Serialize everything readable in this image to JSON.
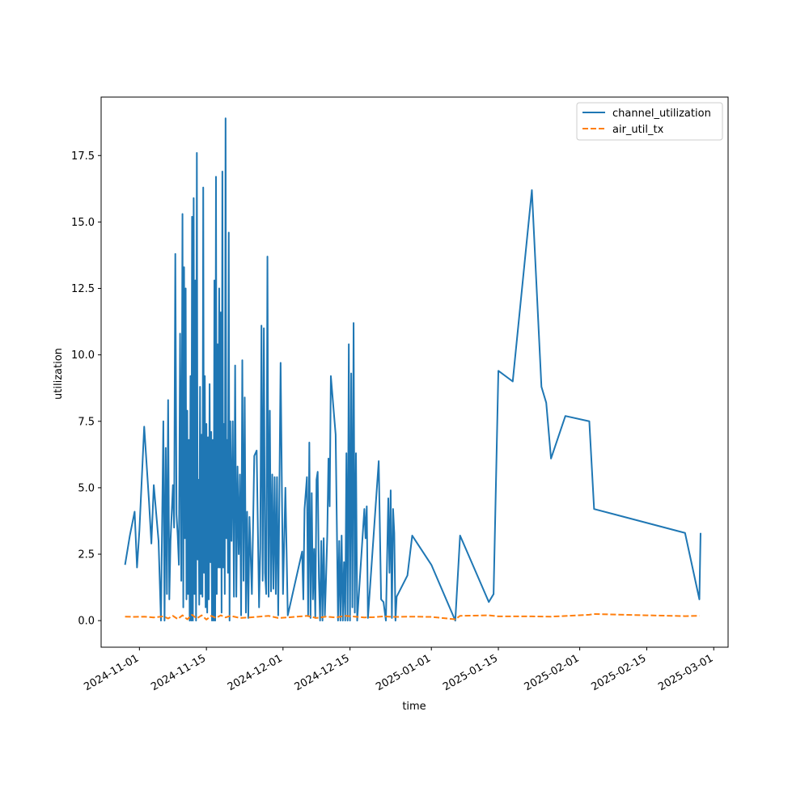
{
  "chart_data": {
    "type": "line",
    "xlabel": "time",
    "ylabel": "utilization",
    "x_axis_type": "date",
    "xlim": [
      "2024-10-24",
      "2025-03-04"
    ],
    "ylim": [
      -1.0,
      19.7
    ],
    "x_ticks": [
      "2024-11-01",
      "2024-11-15",
      "2024-12-01",
      "2024-12-15",
      "2025-01-01",
      "2025-01-15",
      "2025-02-01",
      "2025-02-15",
      "2025-03-01"
    ],
    "y_ticks": [
      "0.0",
      "2.5",
      "5.0",
      "7.5",
      "10.0",
      "12.5",
      "15.0",
      "17.5"
    ],
    "grid": false,
    "legend": "top-right",
    "series": [
      {
        "name": "channel_utilization",
        "color": "#1f77b4",
        "style": "solid",
        "points": [
          [
            "2024-10-29",
            2.1
          ],
          [
            "2024-10-30",
            3.2
          ],
          [
            "2024-10-31",
            4.1
          ],
          [
            "2024-10-31T12:00",
            2.0
          ],
          [
            "2024-11-01",
            3.4
          ],
          [
            "2024-11-02",
            7.3
          ],
          [
            "2024-11-03",
            4.5
          ],
          [
            "2024-11-03T12:00",
            2.9
          ],
          [
            "2024-11-04",
            5.1
          ],
          [
            "2024-11-05",
            3.0
          ],
          [
            "2024-11-05T12:00",
            0.0
          ],
          [
            "2024-11-06",
            7.5
          ],
          [
            "2024-11-06T06:00",
            0.0
          ],
          [
            "2024-11-06T12:00",
            6.5
          ],
          [
            "2024-11-06T18:00",
            1.0
          ],
          [
            "2024-11-07",
            8.3
          ],
          [
            "2024-11-07T06:00",
            0.8
          ],
          [
            "2024-11-07T12:00",
            3.0
          ],
          [
            "2024-11-08",
            5.1
          ],
          [
            "2024-11-08T06:00",
            3.5
          ],
          [
            "2024-11-08T12:00",
            13.8
          ],
          [
            "2024-11-08T18:00",
            4.0
          ],
          [
            "2024-11-09",
            3.2
          ],
          [
            "2024-11-09T06:00",
            2.1
          ],
          [
            "2024-11-09T12:00",
            10.8
          ],
          [
            "2024-11-09T18:00",
            1.5
          ],
          [
            "2024-11-10",
            15.3
          ],
          [
            "2024-11-10T04:00",
            0.5
          ],
          [
            "2024-11-10T08:00",
            13.3
          ],
          [
            "2024-11-10T12:00",
            3.1
          ],
          [
            "2024-11-10T16:00",
            12.5
          ],
          [
            "2024-11-10T20:00",
            0.8
          ],
          [
            "2024-11-11",
            7.9
          ],
          [
            "2024-11-11T04:00",
            1.0
          ],
          [
            "2024-11-11T08:00",
            6.8
          ],
          [
            "2024-11-11T12:00",
            0.0
          ],
          [
            "2024-11-11T16:00",
            9.2
          ],
          [
            "2024-11-11T20:00",
            0.0
          ],
          [
            "2024-11-12",
            15.2
          ],
          [
            "2024-11-12T04:00",
            0.0
          ],
          [
            "2024-11-12T08:00",
            15.9
          ],
          [
            "2024-11-12T12:00",
            1.0
          ],
          [
            "2024-11-12T16:00",
            12.8
          ],
          [
            "2024-11-12T20:00",
            0.0
          ],
          [
            "2024-11-13",
            17.6
          ],
          [
            "2024-11-13T04:00",
            2.3
          ],
          [
            "2024-11-13T08:00",
            5.3
          ],
          [
            "2024-11-13T12:00",
            0.6
          ],
          [
            "2024-11-13T16:00",
            8.8
          ],
          [
            "2024-11-13T20:00",
            1.0
          ],
          [
            "2024-11-14",
            7.0
          ],
          [
            "2024-11-14T04:00",
            0.9
          ],
          [
            "2024-11-14T08:00",
            16.3
          ],
          [
            "2024-11-14T12:00",
            1.8
          ],
          [
            "2024-11-14T16:00",
            9.2
          ],
          [
            "2024-11-14T20:00",
            0.5
          ],
          [
            "2024-11-15",
            7.4
          ],
          [
            "2024-11-15T04:00",
            0.3
          ],
          [
            "2024-11-15T08:00",
            6.9
          ],
          [
            "2024-11-15T12:00",
            0.8
          ],
          [
            "2024-11-15T16:00",
            8.9
          ],
          [
            "2024-11-15T20:00",
            2.2
          ],
          [
            "2024-11-16",
            7.1
          ],
          [
            "2024-11-16T04:00",
            0.0
          ],
          [
            "2024-11-16T08:00",
            6.8
          ],
          [
            "2024-11-16T12:00",
            0.0
          ],
          [
            "2024-11-16T16:00",
            12.8
          ],
          [
            "2024-11-16T20:00",
            0.0
          ],
          [
            "2024-11-17",
            16.7
          ],
          [
            "2024-11-17T04:00",
            1.0
          ],
          [
            "2024-11-17T08:00",
            10.4
          ],
          [
            "2024-11-17T12:00",
            2.0
          ],
          [
            "2024-11-17T16:00",
            12.5
          ],
          [
            "2024-11-17T20:00",
            2.0
          ],
          [
            "2024-11-18",
            11.6
          ],
          [
            "2024-11-18T04:00",
            0.3
          ],
          [
            "2024-11-18T08:00",
            16.9
          ],
          [
            "2024-11-18T12:00",
            2.0
          ],
          [
            "2024-11-18T16:00",
            7.4
          ],
          [
            "2024-11-18T20:00",
            1.0
          ],
          [
            "2024-11-19",
            18.9
          ],
          [
            "2024-11-19T04:00",
            3.1
          ],
          [
            "2024-11-19T08:00",
            6.8
          ],
          [
            "2024-11-19T12:00",
            1.8
          ],
          [
            "2024-11-19T16:00",
            14.6
          ],
          [
            "2024-11-19T20:00",
            0.0
          ],
          [
            "2024-11-20",
            7.5
          ],
          [
            "2024-11-20T06:00",
            3.0
          ],
          [
            "2024-11-20T12:00",
            7.5
          ],
          [
            "2024-11-20T18:00",
            0.9
          ],
          [
            "2024-11-21",
            9.6
          ],
          [
            "2024-11-21T06:00",
            0.9
          ],
          [
            "2024-11-21T12:00",
            5.8
          ],
          [
            "2024-11-21T18:00",
            2.5
          ],
          [
            "2024-11-22",
            5.5
          ],
          [
            "2024-11-22T06:00",
            0.2
          ],
          [
            "2024-11-22T12:00",
            9.8
          ],
          [
            "2024-11-22T18:00",
            1.5
          ],
          [
            "2024-11-23",
            8.4
          ],
          [
            "2024-11-23T06:00",
            0.3
          ],
          [
            "2024-11-23T12:00",
            4.1
          ],
          [
            "2024-11-23T18:00",
            0.1
          ],
          [
            "2024-11-24",
            3.9
          ],
          [
            "2024-11-24T12:00",
            1.0
          ],
          [
            "2024-11-25",
            6.2
          ],
          [
            "2024-11-25T12:00",
            6.4
          ],
          [
            "2024-11-26",
            0.5
          ],
          [
            "2024-11-26T06:00",
            2.7
          ],
          [
            "2024-11-26T12:00",
            11.1
          ],
          [
            "2024-11-26T18:00",
            1.5
          ],
          [
            "2024-11-27",
            11.0
          ],
          [
            "2024-11-27T06:00",
            1.8
          ],
          [
            "2024-11-27T12:00",
            1.0
          ],
          [
            "2024-11-27T18:00",
            13.7
          ],
          [
            "2024-11-28",
            0.9
          ],
          [
            "2024-11-28T06:00",
            7.9
          ],
          [
            "2024-11-28T12:00",
            1.1
          ],
          [
            "2024-11-28T18:00",
            5.5
          ],
          [
            "2024-11-29",
            1.2
          ],
          [
            "2024-11-29T06:00",
            5.4
          ],
          [
            "2024-11-29T12:00",
            1.0
          ],
          [
            "2024-11-29T18:00",
            5.4
          ],
          [
            "2024-11-30",
            0.2
          ],
          [
            "2024-11-30T12:00",
            9.7
          ],
          [
            "2024-12-01",
            1.0
          ],
          [
            "2024-12-01T12:00",
            5.0
          ],
          [
            "2024-12-02",
            0.2
          ],
          [
            "2024-12-05",
            2.6
          ],
          [
            "2024-12-05T06:00",
            0.8
          ],
          [
            "2024-12-05T12:00",
            4.2
          ],
          [
            "2024-12-06",
            5.4
          ],
          [
            "2024-12-06T06:00",
            0.2
          ],
          [
            "2024-12-06T12:00",
            6.7
          ],
          [
            "2024-12-06T18:00",
            0.1
          ],
          [
            "2024-12-07",
            4.8
          ],
          [
            "2024-12-07T06:00",
            0.8
          ],
          [
            "2024-12-07T12:00",
            2.7
          ],
          [
            "2024-12-07T18:00",
            0.1
          ],
          [
            "2024-12-08",
            5.3
          ],
          [
            "2024-12-08T06:00",
            5.6
          ],
          [
            "2024-12-08T12:00",
            1.6
          ],
          [
            "2024-12-08T18:00",
            0.0
          ],
          [
            "2024-12-09",
            3.0
          ],
          [
            "2024-12-09T06:00",
            0.0
          ],
          [
            "2024-12-09T12:00",
            3.1
          ],
          [
            "2024-12-09T18:00",
            0.2
          ],
          [
            "2024-12-10",
            1.6
          ],
          [
            "2024-12-10T06:00",
            3.2
          ],
          [
            "2024-12-10T12:00",
            6.1
          ],
          [
            "2024-12-10T18:00",
            4.3
          ],
          [
            "2024-12-11",
            9.2
          ],
          [
            "2024-12-12",
            7.0
          ],
          [
            "2024-12-12T06:00",
            3.6
          ],
          [
            "2024-12-12T12:00",
            0.0
          ],
          [
            "2024-12-12T18:00",
            3.0
          ],
          [
            "2024-12-13",
            0.0
          ],
          [
            "2024-12-13T06:00",
            3.2
          ],
          [
            "2024-12-13T12:00",
            0.0
          ],
          [
            "2024-12-13T18:00",
            2.2
          ],
          [
            "2024-12-14",
            0.0
          ],
          [
            "2024-12-14T06:00",
            6.3
          ],
          [
            "2024-12-14T12:00",
            0.0
          ],
          [
            "2024-12-14T18:00",
            10.4
          ],
          [
            "2024-12-15",
            0.0
          ],
          [
            "2024-12-15T06:00",
            9.3
          ],
          [
            "2024-12-15T12:00",
            0.5
          ],
          [
            "2024-12-15T18:00",
            11.2
          ],
          [
            "2024-12-16",
            0.3
          ],
          [
            "2024-12-16T06:00",
            6.3
          ],
          [
            "2024-12-16T12:00",
            0.0
          ],
          [
            "2024-12-18",
            4.2
          ],
          [
            "2024-12-18T06:00",
            3.1
          ],
          [
            "2024-12-18T12:00",
            4.3
          ],
          [
            "2024-12-18T18:00",
            0.1
          ],
          [
            "2024-12-21",
            6.0
          ],
          [
            "2024-12-21T12:00",
            0.8
          ],
          [
            "2024-12-22",
            0.7
          ],
          [
            "2024-12-22T12:00",
            0.0
          ],
          [
            "2024-12-23",
            4.6
          ],
          [
            "2024-12-23T06:00",
            1.8
          ],
          [
            "2024-12-23T12:00",
            4.9
          ],
          [
            "2024-12-23T18:00",
            0.1
          ],
          [
            "2024-12-24",
            4.2
          ],
          [
            "2024-12-24T06:00",
            3.3
          ],
          [
            "2024-12-24T12:00",
            0.0
          ],
          [
            "2024-12-24T18:00",
            0.9
          ],
          [
            "2024-12-27",
            1.7
          ],
          [
            "2024-12-28",
            3.2
          ],
          [
            "2025-01-01",
            2.1
          ],
          [
            "2025-01-06",
            0.0
          ],
          [
            "2025-01-07",
            3.2
          ],
          [
            "2025-01-13",
            0.7
          ],
          [
            "2025-01-14",
            1.0
          ],
          [
            "2025-01-15",
            9.4
          ],
          [
            "2025-01-18",
            9.0
          ],
          [
            "2025-01-22",
            16.2
          ],
          [
            "2025-01-24",
            8.8
          ],
          [
            "2025-01-25",
            8.2
          ],
          [
            "2025-01-26",
            6.1
          ],
          [
            "2025-01-29",
            7.7
          ],
          [
            "2025-02-03",
            7.5
          ],
          [
            "2025-02-04",
            4.2
          ],
          [
            "2025-02-23",
            3.3
          ],
          [
            "2025-02-26",
            0.8
          ],
          [
            "2025-02-26T06:00",
            3.3
          ]
        ]
      },
      {
        "name": "air_util_tx",
        "color": "#ff7f0e",
        "style": "dashed",
        "points": [
          [
            "2024-10-29",
            0.15
          ],
          [
            "2024-10-31",
            0.14
          ],
          [
            "2024-11-02",
            0.15
          ],
          [
            "2024-11-04",
            0.12
          ],
          [
            "2024-11-06",
            0.16
          ],
          [
            "2024-11-07",
            0.08
          ],
          [
            "2024-11-08",
            0.18
          ],
          [
            "2024-11-09",
            0.06
          ],
          [
            "2024-11-10",
            0.2
          ],
          [
            "2024-11-11",
            0.05
          ],
          [
            "2024-11-12",
            0.22
          ],
          [
            "2024-11-13",
            0.08
          ],
          [
            "2024-11-14",
            0.2
          ],
          [
            "2024-11-15",
            0.04
          ],
          [
            "2024-11-16",
            0.18
          ],
          [
            "2024-11-17",
            0.1
          ],
          [
            "2024-11-18",
            0.2
          ],
          [
            "2024-11-19",
            0.12
          ],
          [
            "2024-11-20",
            0.18
          ],
          [
            "2024-11-22",
            0.1
          ],
          [
            "2024-11-24",
            0.12
          ],
          [
            "2024-11-26",
            0.15
          ],
          [
            "2024-11-28",
            0.18
          ],
          [
            "2024-11-30",
            0.1
          ],
          [
            "2024-12-02",
            0.12
          ],
          [
            "2024-12-06",
            0.18
          ],
          [
            "2024-12-08",
            0.1
          ],
          [
            "2024-12-10",
            0.15
          ],
          [
            "2024-12-12",
            0.12
          ],
          [
            "2024-12-14",
            0.18
          ],
          [
            "2024-12-16",
            0.15
          ],
          [
            "2024-12-18",
            0.12
          ],
          [
            "2024-12-20",
            0.13
          ],
          [
            "2024-12-22",
            0.16
          ],
          [
            "2024-12-24",
            0.14
          ],
          [
            "2024-12-28",
            0.15
          ],
          [
            "2025-01-01",
            0.14
          ],
          [
            "2025-01-06",
            0.05
          ],
          [
            "2025-01-07",
            0.18
          ],
          [
            "2025-01-13",
            0.2
          ],
          [
            "2025-01-15",
            0.16
          ],
          [
            "2025-01-22",
            0.16
          ],
          [
            "2025-01-26",
            0.15
          ],
          [
            "2025-02-03",
            0.22
          ],
          [
            "2025-02-04",
            0.25
          ],
          [
            "2025-02-15",
            0.2
          ],
          [
            "2025-02-23",
            0.17
          ],
          [
            "2025-02-26",
            0.18
          ]
        ]
      }
    ]
  }
}
